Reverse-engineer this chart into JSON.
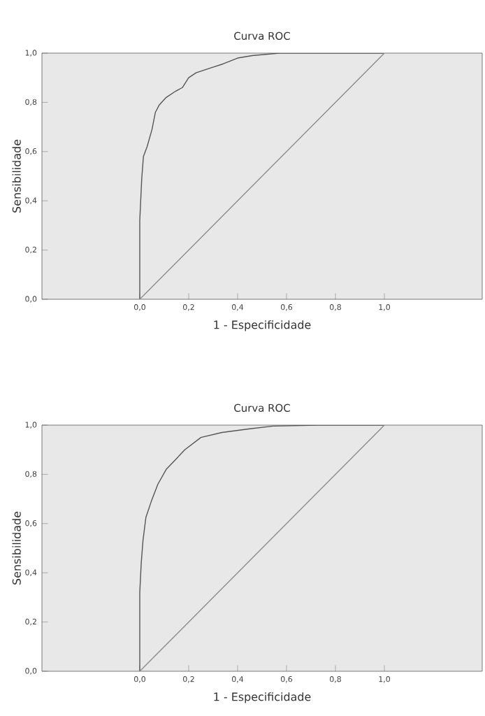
{
  "chart_data": [
    {
      "type": "line",
      "title": "Curva ROC",
      "xlabel": "1 - Especificidade",
      "ylabel": "Sensibilidade",
      "xlim": [
        -0.4,
        1.4
      ],
      "ylim": [
        0,
        1
      ],
      "xticks": [
        {
          "value": 0,
          "label": "0,0"
        },
        {
          "value": 0.2,
          "label": "0,2"
        },
        {
          "value": 0.4,
          "label": "0,4"
        },
        {
          "value": 0.6,
          "label": "0,6"
        },
        {
          "value": 0.8,
          "label": "0,8"
        },
        {
          "value": 1,
          "label": "1,0"
        }
      ],
      "yticks": [
        {
          "value": 0,
          "label": "0,0"
        },
        {
          "value": 0.2,
          "label": "0,2"
        },
        {
          "value": 0.4,
          "label": "0,4"
        },
        {
          "value": 0.6,
          "label": "0,6"
        },
        {
          "value": 0.8,
          "label": "0,8"
        },
        {
          "value": 1,
          "label": "1,0"
        }
      ],
      "line_style": "solid",
      "series": [
        {
          "color": "#555555",
          "x": [
            0,
            0,
            0.008,
            0.015,
            0.03,
            0.05,
            0.064,
            0.08,
            0.108,
            0.146,
            0.174,
            0.2,
            0.23,
            0.29,
            0.34,
            0.4,
            0.46,
            0.57,
            1
          ],
          "values": [
            0,
            0.32,
            0.49,
            0.58,
            0.62,
            0.69,
            0.76,
            0.79,
            0.82,
            0.845,
            0.86,
            0.9,
            0.92,
            0.94,
            0.956,
            0.98,
            0.99,
            1,
            1
          ]
        },
        {
          "color": "#8c8c8c",
          "x": [
            0,
            1
          ],
          "values": [
            0,
            1
          ]
        }
      ]
    },
    {
      "type": "line",
      "title": "Curva ROC",
      "xlabel": "1 - Especificidade",
      "ylabel": "Sensibilidade",
      "xlim": [
        -0.4,
        1.4
      ],
      "ylim": [
        0,
        1
      ],
      "xticks": [
        {
          "value": 0,
          "label": "0,0"
        },
        {
          "value": 0.2,
          "label": "0,2"
        },
        {
          "value": 0.4,
          "label": "0,4"
        },
        {
          "value": 0.6,
          "label": "0,6"
        },
        {
          "value": 0.8,
          "label": "0,8"
        },
        {
          "value": 1,
          "label": "1,0"
        }
      ],
      "yticks": [
        {
          "value": 0,
          "label": "0,0"
        },
        {
          "value": 0.2,
          "label": "0,2"
        },
        {
          "value": 0.4,
          "label": "0,4"
        },
        {
          "value": 0.6,
          "label": "0,6"
        },
        {
          "value": 0.8,
          "label": "0,8"
        },
        {
          "value": 1,
          "label": "1,0"
        }
      ],
      "line_style": "solid",
      "series": [
        {
          "color": "#555555",
          "x": [
            0,
            0,
            0.006,
            0.013,
            0.025,
            0.047,
            0.074,
            0.108,
            0.137,
            0.184,
            0.25,
            0.336,
            0.45,
            0.545,
            0.73,
            1
          ],
          "values": [
            0,
            0.32,
            0.44,
            0.53,
            0.625,
            0.69,
            0.76,
            0.82,
            0.85,
            0.9,
            0.95,
            0.97,
            0.985,
            0.996,
            1,
            1
          ]
        },
        {
          "color": "#8c8c8c",
          "x": [
            0,
            1
          ],
          "values": [
            0,
            1
          ]
        }
      ]
    }
  ]
}
